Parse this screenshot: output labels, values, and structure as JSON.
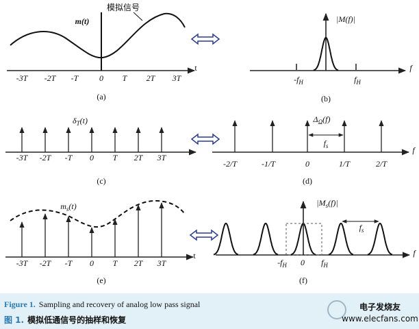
{
  "panel_a": {
    "signal": "m(t)",
    "annotation": "模拟信号",
    "axis_label": "t",
    "ticks": [
      "-3T",
      "-2T",
      "-T",
      "0",
      "T",
      "2T",
      "3T"
    ],
    "caption": "(a)"
  },
  "panel_b": {
    "signal": "|M(f)|",
    "axis_label": "f",
    "ticks": [
      {
        "main": "-f",
        "sub": "H"
      },
      {
        "main": "f",
        "sub": "H"
      }
    ],
    "caption": "(b)"
  },
  "panel_c": {
    "signal": {
      "main": "δ",
      "sub": "T",
      "rest": "(t)"
    },
    "ticks": [
      "-3T",
      "-2T",
      "-T",
      "0",
      "T",
      "2T",
      "3T"
    ],
    "caption": "(c)"
  },
  "panel_d": {
    "signal": {
      "main": "Δ",
      "sub": "Ω",
      "rest": "(f)"
    },
    "axis_label": "f",
    "ticks": [
      "-2/T",
      "-1/T",
      "0",
      "1/T",
      "2/T"
    ],
    "spacing": {
      "main": "f",
      "sub": "s"
    },
    "caption": "(d)"
  },
  "panel_e": {
    "signal": {
      "main": "m",
      "sub": "s",
      "rest": "(t)"
    },
    "axis_label": "t",
    "ticks": [
      "-3T",
      "-2T",
      "-T",
      "0",
      "T",
      "2T",
      "3T"
    ],
    "caption": "(e)"
  },
  "panel_f": {
    "signal": {
      "main": "|M",
      "sub": "s",
      "rest": "(f)|"
    },
    "axis_label": "f",
    "ticks": [
      {
        "main": "-f",
        "sub": "H"
      },
      "0",
      {
        "main": "f",
        "sub": "H"
      }
    ],
    "spacing": {
      "main": "f",
      "sub": "s"
    },
    "caption": "(f)"
  },
  "caption": {
    "en_label": "Figure 1.",
    "en_text": "Sampling and recovery of analog low pass signal",
    "zh_label": "图 1.",
    "zh_text": "模拟低通信号的抽样和恢复"
  },
  "watermark": {
    "name": "电子发烧友",
    "url": "www.elecfans.com"
  }
}
